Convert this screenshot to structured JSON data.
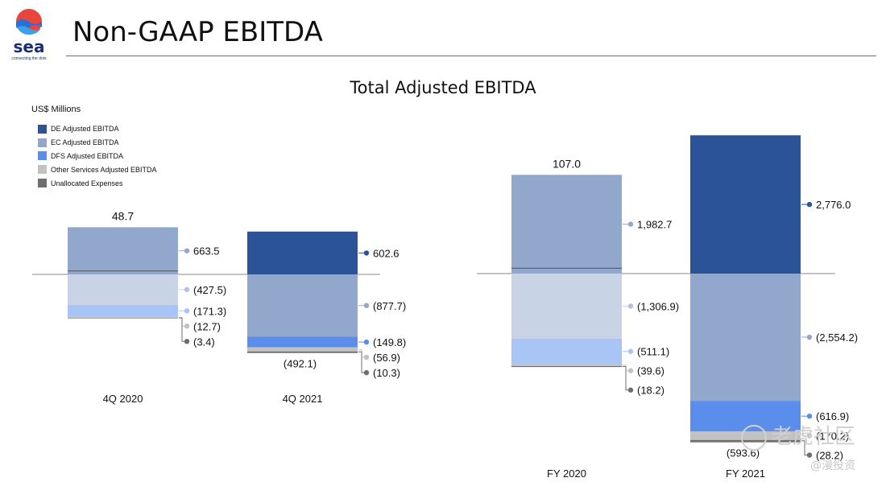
{
  "header": {
    "logo_text": "sea",
    "logo_tagline": "connecting the dots",
    "title": "Non-GAAP EBITDA"
  },
  "chart_data": {
    "type": "bar",
    "title": "Total Adjusted EBITDA",
    "unit": "US$ Millions",
    "legend_position": "top-left",
    "series": [
      {
        "name": "DE Adjusted EBITDA",
        "color": "#2b5498"
      },
      {
        "name": "EC Adjusted EBITDA",
        "color": "#92a7cc"
      },
      {
        "name": "DFS Adjusted EBITDA",
        "color": "#5b8eea"
      },
      {
        "name": "Other Services Adjusted EBITDA",
        "color": "#c2c2c2"
      },
      {
        "name": "Unallocated Expenses",
        "color": "#6e6e6e"
      }
    ],
    "groups": [
      {
        "label": "4Q 2020",
        "total": "48.7",
        "components": [
          {
            "series": "EC Adjusted EBITDA",
            "value": 663.5,
            "label": "663.5",
            "color": "#92a7cc"
          },
          {
            "series": "DE Adjusted EBITDA",
            "value": -427.5,
            "label": "(427.5)",
            "color": "#c9d3e6"
          },
          {
            "series": "DFS Adjusted EBITDA",
            "value": -171.3,
            "label": "(171.3)",
            "color": "#a8c5f6"
          },
          {
            "series": "Other Services Adjusted EBITDA",
            "value": -12.7,
            "label": "(12.7)",
            "color": "#c2c2c2"
          },
          {
            "series": "Unallocated Expenses",
            "value": -3.4,
            "label": "(3.4)",
            "color": "#6e6e6e"
          }
        ]
      },
      {
        "label": "4Q 2021",
        "total": "(492.1)",
        "components": [
          {
            "series": "DE Adjusted EBITDA",
            "value": 602.6,
            "label": "602.6",
            "color": "#2b5498"
          },
          {
            "series": "EC Adjusted EBITDA",
            "value": -877.7,
            "label": "(877.7)",
            "color": "#92a7cc"
          },
          {
            "series": "DFS Adjusted EBITDA",
            "value": -149.8,
            "label": "(149.8)",
            "color": "#5b8eea"
          },
          {
            "series": "Other Services Adjusted EBITDA",
            "value": -56.9,
            "label": "(56.9)",
            "color": "#c2c2c2"
          },
          {
            "series": "Unallocated Expenses",
            "value": -10.3,
            "label": "(10.3)",
            "color": "#6e6e6e"
          }
        ]
      },
      {
        "label": "FY 2020",
        "total": "107.0",
        "components": [
          {
            "series": "EC Adjusted EBITDA",
            "value": 1982.7,
            "label": "1,982.7",
            "color": "#92a7cc"
          },
          {
            "series": "DE Adjusted EBITDA",
            "value": -1306.9,
            "label": "(1,306.9)",
            "color": "#c9d3e6"
          },
          {
            "series": "DFS Adjusted EBITDA",
            "value": -511.1,
            "label": "(511.1)",
            "color": "#a8c5f6"
          },
          {
            "series": "Other Services Adjusted EBITDA",
            "value": -39.6,
            "label": "(39.6)",
            "color": "#c2c2c2"
          },
          {
            "series": "Unallocated Expenses",
            "value": -18.2,
            "label": "(18.2)",
            "color": "#6e6e6e"
          }
        ]
      },
      {
        "label": "FY 2021",
        "total": "(593.6)",
        "components": [
          {
            "series": "DE Adjusted EBITDA",
            "value": 2776.0,
            "label": "2,776.0",
            "color": "#2b5498"
          },
          {
            "series": "EC Adjusted EBITDA",
            "value": -2554.2,
            "label": "(2,554.2)",
            "color": "#92a7cc"
          },
          {
            "series": "DFS Adjusted EBITDA",
            "value": -616.9,
            "label": "(616.9)",
            "color": "#5b8eea"
          },
          {
            "series": "Other Services Adjusted EBITDA",
            "value": -170.2,
            "label": "(170.2)",
            "color": "#c2c2c2"
          },
          {
            "series": "Unallocated Expenses",
            "value": -28.2,
            "label": "(28.2)",
            "color": "#6e6e6e"
          }
        ]
      }
    ]
  },
  "watermark": {
    "text": "老虎社区",
    "sub": "@漫投资"
  }
}
